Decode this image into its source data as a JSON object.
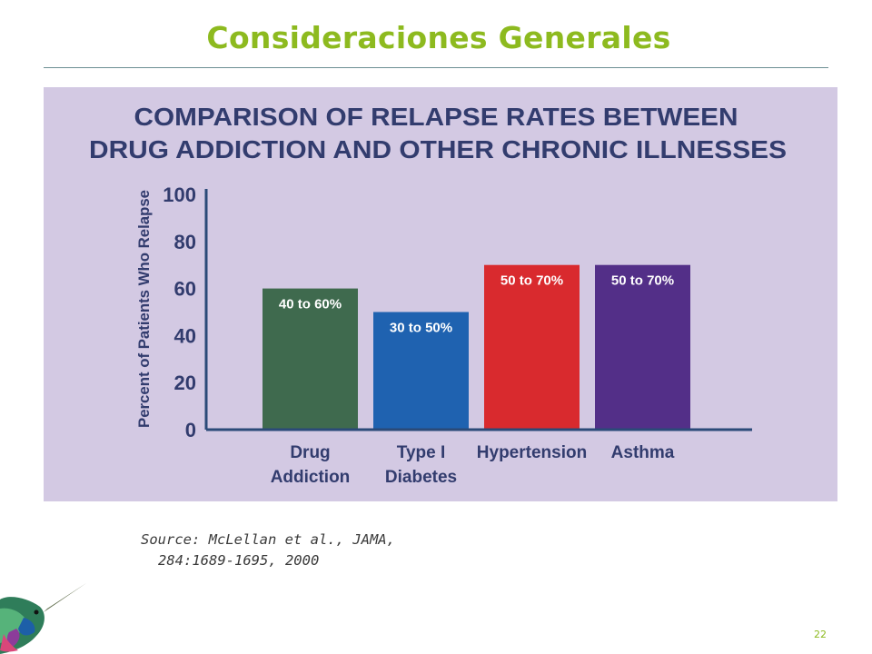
{
  "slide": {
    "title": "Consideraciones Generales",
    "page_number": "22",
    "source_line1": "Source: McLellan et al., JAMA,",
    "source_line2": "284:1689-1695, 2000"
  },
  "chart_data": {
    "type": "bar",
    "title_line1": "COMPARISON OF RELAPSE RATES BETWEEN",
    "title_line2": "DRUG ADDICTION AND OTHER CHRONIC ILLNESSES",
    "ylabel": "Percent of Patients Who Relapse",
    "ylim": [
      0,
      100
    ],
    "yticks": [
      0,
      20,
      40,
      60,
      80,
      100
    ],
    "categories": [
      {
        "line1": "Drug",
        "line2": "Addiction"
      },
      {
        "line1": "Type I",
        "line2": "Diabetes"
      },
      {
        "line1": "Hypertension",
        "line2": ""
      },
      {
        "line1": "Asthma",
        "line2": ""
      }
    ],
    "values": [
      60,
      50,
      70,
      70
    ],
    "labels": [
      "40 to 60%",
      "30 to 50%",
      "50 to 70%",
      "50 to 70%"
    ],
    "colors": [
      "#3f6a4e",
      "#1f62b0",
      "#d92a2e",
      "#532f88"
    ],
    "background_color": "#d3c9e3",
    "grid": false,
    "legend": "none"
  }
}
